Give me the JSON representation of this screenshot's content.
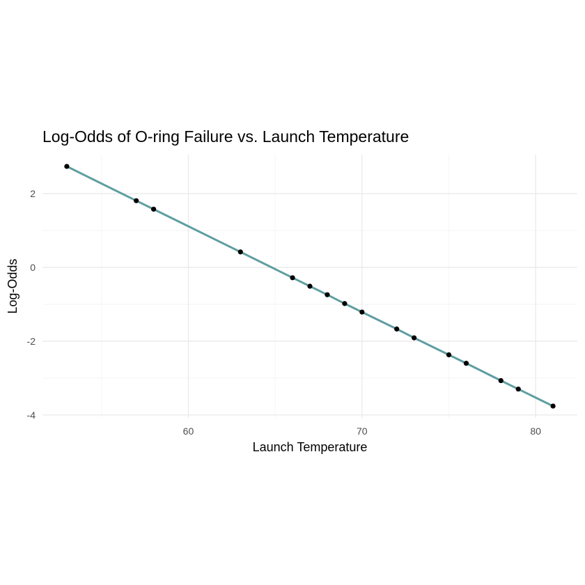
{
  "chart_data": {
    "type": "line",
    "title": "Log-Odds of O-ring Failure vs. Launch Temperature",
    "xlabel": "Launch Temperature",
    "ylabel": "Log-Odds",
    "xlim": [
      51.6,
      82.4
    ],
    "ylim": [
      -4.08,
      3.06
    ],
    "x_ticks": [
      60,
      70,
      80
    ],
    "x_tick_labels": [
      "60",
      "70",
      "80"
    ],
    "y_ticks": [
      -4,
      -2,
      0,
      2
    ],
    "y_tick_labels": [
      "-4",
      "-2",
      "0",
      "2"
    ],
    "x_minor_ticks": [
      55,
      65,
      75
    ],
    "y_minor_ticks": [
      -3,
      -1,
      1
    ],
    "grid": true,
    "line_color": "#5F9EA0",
    "point_color": "#000000",
    "series": [
      {
        "x": [
          53,
          57,
          58,
          63,
          66,
          67,
          68,
          69,
          70,
          72,
          73,
          75,
          76,
          78,
          79,
          81
        ],
        "y": [
          2.74,
          1.81,
          1.58,
          0.42,
          -0.28,
          -0.51,
          -0.74,
          -0.98,
          -1.21,
          -1.67,
          -1.91,
          -2.37,
          -2.6,
          -3.07,
          -3.3,
          -3.76
        ]
      }
    ]
  }
}
